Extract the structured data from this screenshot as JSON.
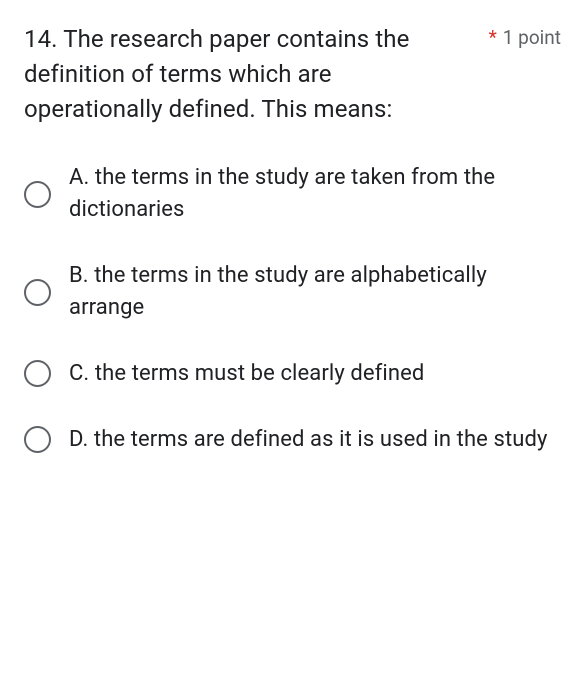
{
  "question": {
    "text": "14. The research paper contains the definition of terms which are operationally defined. This means:",
    "required_indicator": "*",
    "points_label": "1 point",
    "options": [
      {
        "label": "A. the terms in the study are taken from the dictionaries"
      },
      {
        "label": "B. the terms in the study are alphabetically arrange"
      },
      {
        "label": "C. the terms must be clearly defined"
      },
      {
        "label": "D. the terms are defined as it is used in the study"
      }
    ]
  },
  "style": {
    "text_color": "#202124",
    "muted_color": "#5f6368",
    "required_color": "#d93025",
    "radio_border_color": "#5f6368",
    "background": "#ffffff",
    "question_fontsize": 24,
    "option_fontsize": 22,
    "radio_size": 27
  }
}
